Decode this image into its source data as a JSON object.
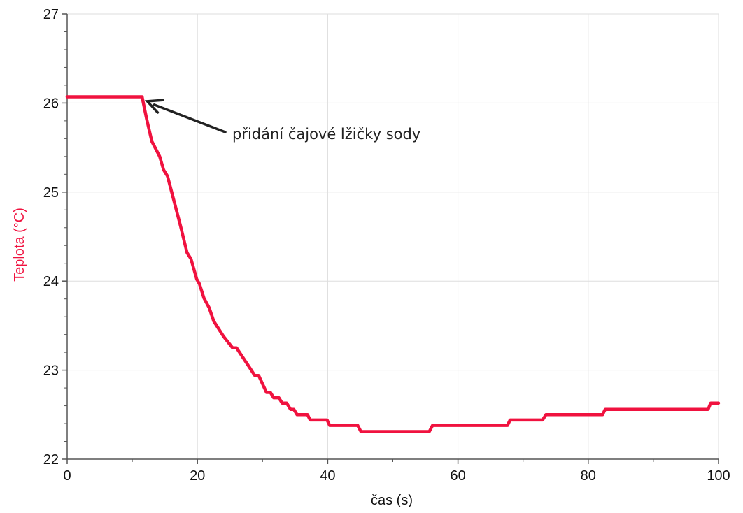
{
  "chart_data": {
    "type": "line",
    "title": "",
    "xlabel": "čas (s)",
    "ylabel": "Teplota (°C)",
    "xlim": [
      0,
      100
    ],
    "ylim": [
      22,
      27
    ],
    "xticks": [
      "0",
      "20",
      "40",
      "60",
      "80",
      "100"
    ],
    "yticks": [
      "22",
      "23",
      "24",
      "25",
      "26",
      "27"
    ],
    "grid": true,
    "colors": {
      "series": "#F0123F",
      "ylabel": "#F0123F",
      "grid": "#DDDDDD",
      "axis": "#555555",
      "annotation": "#222222"
    },
    "series": [
      {
        "name": "",
        "points": [
          [
            0,
            26.07
          ],
          [
            11.5,
            26.07
          ],
          [
            12.2,
            25.82
          ],
          [
            13.0,
            25.57
          ],
          [
            14.2,
            25.4
          ],
          [
            14.8,
            25.25
          ],
          [
            15.4,
            25.18
          ],
          [
            16.4,
            24.9
          ],
          [
            17.4,
            24.62
          ],
          [
            18.4,
            24.32
          ],
          [
            19.0,
            24.25
          ],
          [
            19.9,
            24.02
          ],
          [
            20.3,
            23.97
          ],
          [
            21.0,
            23.81
          ],
          [
            21.8,
            23.7
          ],
          [
            22.5,
            23.55
          ],
          [
            24.0,
            23.38
          ],
          [
            25.4,
            23.25
          ],
          [
            26.0,
            23.25
          ],
          [
            28.0,
            23.03
          ],
          [
            28.8,
            22.94
          ],
          [
            29.4,
            22.94
          ],
          [
            30.6,
            22.75
          ],
          [
            31.2,
            22.75
          ],
          [
            31.7,
            22.69
          ],
          [
            32.5,
            22.69
          ],
          [
            33.0,
            22.63
          ],
          [
            33.7,
            22.63
          ],
          [
            34.3,
            22.56
          ],
          [
            34.8,
            22.56
          ],
          [
            35.3,
            22.5
          ],
          [
            36.9,
            22.5
          ],
          [
            37.3,
            22.44
          ],
          [
            39.9,
            22.44
          ],
          [
            40.3,
            22.38
          ],
          [
            44.6,
            22.38
          ],
          [
            45.1,
            22.31
          ],
          [
            55.6,
            22.31
          ],
          [
            56.1,
            22.38
          ],
          [
            67.6,
            22.38
          ],
          [
            68.0,
            22.44
          ],
          [
            73.0,
            22.44
          ],
          [
            73.5,
            22.5
          ],
          [
            82.2,
            22.5
          ],
          [
            82.6,
            22.56
          ],
          [
            98.4,
            22.56
          ],
          [
            98.8,
            22.63
          ],
          [
            100,
            22.63
          ]
        ]
      }
    ],
    "annotations": [
      {
        "text": "přidání čajové lžičky sody",
        "arrow_to": [
          12.3,
          26.02
        ]
      }
    ]
  }
}
